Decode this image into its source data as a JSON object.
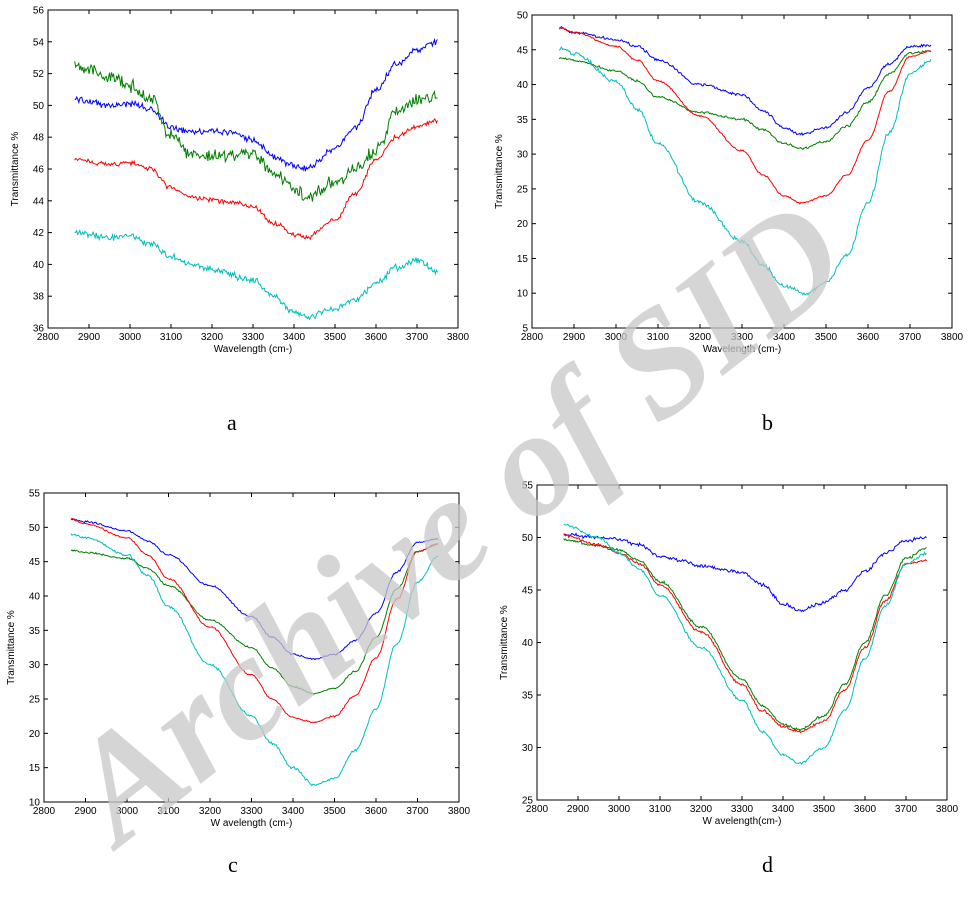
{
  "panels": [
    {
      "caption": "a",
      "chart_data": {
        "type": "line",
        "title": "",
        "xlabel": "Wavelength (cm-)",
        "ylabel": "Transmittance %",
        "xlim": [
          2800,
          3800
        ],
        "ylim": [
          36,
          56
        ],
        "xticks": [
          2800,
          2900,
          3000,
          3100,
          3200,
          3300,
          3400,
          3500,
          3600,
          3700,
          3800
        ],
        "yticks": [
          36,
          38,
          40,
          42,
          44,
          46,
          48,
          50,
          52,
          54,
          56
        ],
        "grid": false,
        "series": [
          {
            "color": "#0000ff",
            "noise": 0.25,
            "x": [
              2865,
              2950,
              3000,
              3050,
              3100,
              3150,
              3250,
              3300,
              3350,
              3400,
              3430,
              3500,
              3550,
              3600,
              3650,
              3700,
              3750
            ],
            "y": [
              50.4,
              50.0,
              50.1,
              49.8,
              48.6,
              48.4,
              48.3,
              47.8,
              46.8,
              46.2,
              46.0,
              47.3,
              48.6,
              51.0,
              52.6,
              53.5,
              54.0
            ]
          },
          {
            "color": "#008000",
            "noise": 0.5,
            "x": [
              2865,
              2950,
              3000,
              3050,
              3100,
              3150,
              3200,
              3300,
              3350,
              3400,
              3430,
              3500,
              3550,
              3600,
              3650,
              3700,
              3750
            ],
            "y": [
              52.6,
              51.8,
              51.2,
              50.5,
              48.0,
              47.0,
              46.8,
              47.0,
              45.8,
              44.8,
              44.2,
              45.2,
              46.0,
              47.2,
              49.5,
              50.3,
              50.5
            ]
          },
          {
            "color": "#ff0000",
            "noise": 0.18,
            "x": [
              2865,
              2950,
              3000,
              3050,
              3100,
              3150,
              3250,
              3300,
              3350,
              3400,
              3430,
              3500,
              3550,
              3600,
              3650,
              3700,
              3750
            ],
            "y": [
              46.6,
              46.3,
              46.4,
              46.0,
              44.8,
              44.2,
              43.9,
              43.6,
              42.6,
              41.9,
              41.7,
              42.8,
              44.5,
              46.6,
              48.0,
              48.7,
              49.0
            ]
          },
          {
            "color": "#00bfbf",
            "noise": 0.25,
            "x": [
              2865,
              2950,
              3000,
              3050,
              3100,
              3150,
              3200,
              3300,
              3350,
              3400,
              3430,
              3500,
              3550,
              3600,
              3650,
              3700,
              3750
            ],
            "y": [
              42.0,
              41.7,
              41.8,
              41.3,
              40.5,
              40.0,
              39.7,
              39.0,
              38.0,
              37.0,
              36.7,
              37.2,
              37.8,
              38.8,
              39.8,
              40.3,
              39.6
            ]
          }
        ]
      }
    },
    {
      "caption": "b",
      "chart_data": {
        "type": "line",
        "title": "",
        "xlabel": "Wavelength (cm-)",
        "ylabel": "Transmittance %",
        "xlim": [
          2800,
          3800
        ],
        "ylim": [
          5,
          50
        ],
        "xticks": [
          2800,
          2900,
          3000,
          3100,
          3200,
          3300,
          3400,
          3500,
          3600,
          3700,
          3800
        ],
        "yticks": [
          5,
          10,
          15,
          20,
          25,
          30,
          35,
          40,
          45,
          50
        ],
        "grid": false,
        "series": [
          {
            "color": "#0000ff",
            "noise": 0.25,
            "x": [
              2865,
              2900,
              3000,
              3050,
              3100,
              3200,
              3300,
              3350,
              3400,
              3440,
              3500,
              3550,
              3600,
              3650,
              3700,
              3750
            ],
            "y": [
              48.2,
              47.5,
              46.5,
              45.5,
              43.5,
              40.0,
              38.5,
              36.2,
              33.8,
              32.8,
              33.8,
              36.0,
              39.5,
              43.0,
              45.5,
              45.6
            ]
          },
          {
            "color": "#008000",
            "noise": 0.2,
            "x": [
              2865,
              2900,
              3000,
              3050,
              3100,
              3200,
              3300,
              3350,
              3400,
              3440,
              3500,
              3550,
              3600,
              3650,
              3700,
              3750
            ],
            "y": [
              43.8,
              43.5,
              42.0,
              40.5,
              38.2,
              36.0,
              35.0,
              33.5,
              31.5,
              30.8,
              31.8,
              34.0,
              37.5,
              41.5,
              44.5,
              44.8
            ]
          },
          {
            "color": "#ff0000",
            "noise": 0.15,
            "x": [
              2865,
              2900,
              3000,
              3050,
              3100,
              3200,
              3300,
              3350,
              3400,
              3440,
              3500,
              3550,
              3600,
              3650,
              3700,
              3750
            ],
            "y": [
              48.2,
              47.5,
              45.5,
              43.5,
              40.5,
              35.5,
              30.5,
              27.0,
              24.0,
              23.0,
              24.0,
              27.0,
              32.0,
              39.0,
              44.0,
              44.8
            ]
          },
          {
            "color": "#00bfbf",
            "noise": 0.35,
            "x": [
              2865,
              2900,
              3000,
              3050,
              3100,
              3200,
              3300,
              3350,
              3400,
              3450,
              3500,
              3550,
              3600,
              3650,
              3700,
              3750
            ],
            "y": [
              45.2,
              44.5,
              40.5,
              36.5,
              31.5,
              23.0,
              17.5,
              14.0,
              11.0,
              10.0,
              11.5,
              15.5,
              23.0,
              33.0,
              41.5,
              43.5
            ]
          }
        ]
      }
    },
    {
      "caption": "c",
      "chart_data": {
        "type": "line",
        "title": "",
        "xlabel": "W avelength (cm-)",
        "ylabel": "Transmittance %",
        "xlim": [
          2800,
          3800
        ],
        "ylim": [
          10,
          55
        ],
        "xticks": [
          2800,
          2900,
          3000,
          3100,
          3200,
          3300,
          3400,
          3500,
          3600,
          3700,
          3800
        ],
        "yticks": [
          10,
          15,
          20,
          25,
          30,
          35,
          40,
          45,
          50,
          55
        ],
        "grid": false,
        "series": [
          {
            "color": "#0000ff",
            "noise": 0.15,
            "x": [
              2865,
              2900,
              3000,
              3050,
              3100,
              3200,
              3300,
              3350,
              3400,
              3450,
              3500,
              3550,
              3600,
              3650,
              3700,
              3750
            ],
            "y": [
              51.2,
              50.8,
              49.5,
              48.0,
              46.0,
              41.5,
              37.0,
              34.0,
              31.5,
              30.8,
              31.5,
              33.5,
              37.5,
              43.5,
              47.8,
              48.3
            ]
          },
          {
            "color": "#008000",
            "noise": 0.15,
            "x": [
              2865,
              2900,
              3000,
              3050,
              3100,
              3200,
              3300,
              3350,
              3400,
              3450,
              3500,
              3550,
              3600,
              3650,
              3700,
              3750
            ],
            "y": [
              46.7,
              46.3,
              45.5,
              44.0,
              41.5,
              36.5,
              32.5,
              29.5,
              26.8,
              25.8,
              26.5,
              29.0,
              34.0,
              41.0,
              46.5,
              47.5
            ]
          },
          {
            "color": "#ff0000",
            "noise": 0.15,
            "x": [
              2865,
              2900,
              3000,
              3050,
              3100,
              3200,
              3300,
              3350,
              3400,
              3450,
              3500,
              3550,
              3600,
              3650,
              3700,
              3750
            ],
            "y": [
              51.2,
              50.5,
              48.5,
              46.0,
              42.5,
              35.5,
              28.5,
              25.0,
              22.3,
              21.6,
              22.5,
              25.5,
              31.0,
              39.5,
              46.5,
              47.6
            ]
          },
          {
            "color": "#00bfbf",
            "noise": 0.25,
            "x": [
              2865,
              2900,
              3000,
              3050,
              3100,
              3200,
              3300,
              3350,
              3400,
              3450,
              3500,
              3550,
              3600,
              3650,
              3700,
              3750
            ],
            "y": [
              49.0,
              48.5,
              46.0,
              43.0,
              38.5,
              30.0,
              22.5,
              18.5,
              15.0,
              12.5,
              13.5,
              17.5,
              23.5,
              33.0,
              42.0,
              45.8
            ]
          }
        ]
      }
    },
    {
      "caption": "d",
      "chart_data": {
        "type": "line",
        "title": "",
        "xlabel": "W avelength(cm-)",
        "ylabel": "Transmittance %",
        "xlim": [
          2800,
          3800
        ],
        "ylim": [
          25,
          55
        ],
        "xticks": [
          2800,
          2900,
          3000,
          3100,
          3200,
          3300,
          3400,
          3500,
          3600,
          3700,
          3800
        ],
        "yticks": [
          25,
          30,
          35,
          40,
          45,
          50,
          55
        ],
        "grid": false,
        "series": [
          {
            "color": "#0000ff",
            "noise": 0.2,
            "x": [
              2865,
              2950,
              3000,
              3050,
              3100,
              3150,
              3200,
              3300,
              3350,
              3400,
              3440,
              3500,
              3550,
              3600,
              3650,
              3700,
              3750
            ],
            "y": [
              50.3,
              50.0,
              49.8,
              49.3,
              48.2,
              47.8,
              47.3,
              46.7,
              45.5,
              43.7,
              43.0,
              43.8,
              45.0,
              46.8,
              48.5,
              49.7,
              50.0
            ]
          },
          {
            "color": "#008000",
            "noise": 0.15,
            "x": [
              2865,
              2950,
              3000,
              3050,
              3100,
              3200,
              3300,
              3350,
              3400,
              3440,
              3500,
              3550,
              3600,
              3650,
              3700,
              3750
            ],
            "y": [
              49.8,
              49.2,
              48.8,
              47.8,
              45.8,
              41.5,
              36.5,
              34.0,
              32.2,
              31.7,
              33.0,
              36.0,
              40.0,
              44.5,
              48.0,
              49.0
            ]
          },
          {
            "color": "#ff0000",
            "noise": 0.15,
            "x": [
              2865,
              2950,
              3000,
              3050,
              3100,
              3200,
              3300,
              3350,
              3400,
              3440,
              3500,
              3550,
              3600,
              3650,
              3700,
              3750
            ],
            "y": [
              50.2,
              49.3,
              48.5,
              47.5,
              45.5,
              41.0,
              36.0,
              33.5,
              32.0,
              31.5,
              32.5,
              35.5,
              39.5,
              44.0,
              47.5,
              47.8
            ]
          },
          {
            "color": "#00bfbf",
            "noise": 0.15,
            "x": [
              2865,
              2950,
              3000,
              3050,
              3100,
              3200,
              3300,
              3350,
              3400,
              3440,
              3500,
              3550,
              3600,
              3650,
              3700,
              3750
            ],
            "y": [
              51.2,
              50.0,
              48.5,
              47.0,
              44.5,
              39.5,
              34.5,
              31.5,
              29.3,
              28.5,
              30.0,
              33.5,
              38.5,
              43.5,
              47.5,
              48.5
            ]
          }
        ]
      }
    }
  ],
  "watermark": {
    "text": "Archive of SID",
    "color": "#c8c8c8"
  }
}
